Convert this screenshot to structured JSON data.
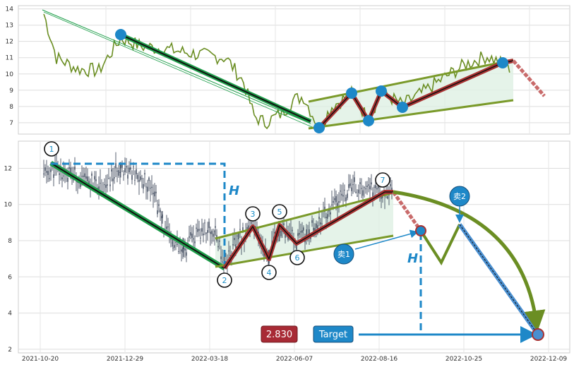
{
  "colors": {
    "price_line": "#6b8e23",
    "downtrend": "#1e9e4a",
    "wave": "#a83232",
    "channel": "#7a9a2a",
    "marker": "#1e88c8",
    "dashed": "#1e88c8",
    "projection_fill": "#dff0e3",
    "arc": "#6b8e23",
    "candle": "#2f3a4f"
  },
  "chart_data": [
    {
      "type": "line",
      "series": [],
      "ylim": [
        6.3,
        14.2
      ],
      "yticks": [
        "7",
        "8",
        "9",
        "10",
        "11",
        "12",
        "13",
        "14"
      ],
      "grid": true,
      "legend": "none"
    },
    {
      "type": "candlestick",
      "xlabels": [
        "2021-10-20",
        "2021-12-29",
        "2022-03-18",
        "2022-06-07",
        "2022-08-16",
        "2022-10-25",
        "2022-12-09"
      ],
      "yticks": [
        "2",
        "4",
        "6",
        "8",
        "10",
        "12"
      ],
      "ylim": [
        1.8,
        13.5
      ],
      "grid": true,
      "wave_points": [
        {
          "label": "1",
          "value": 12.4
        },
        {
          "label": "2",
          "value": 6.6
        },
        {
          "label": "3",
          "value": 8.9
        },
        {
          "label": "4",
          "value": 7.0
        },
        {
          "label": "5",
          "value": 9.0
        },
        {
          "label": "6",
          "value": 7.9
        },
        {
          "label": "7",
          "value": 10.8
        }
      ],
      "annotations": {
        "height_label": "H",
        "sell1": "卖1",
        "sell2": "卖2",
        "target_value": "2.830",
        "target_label": "Target"
      }
    }
  ]
}
